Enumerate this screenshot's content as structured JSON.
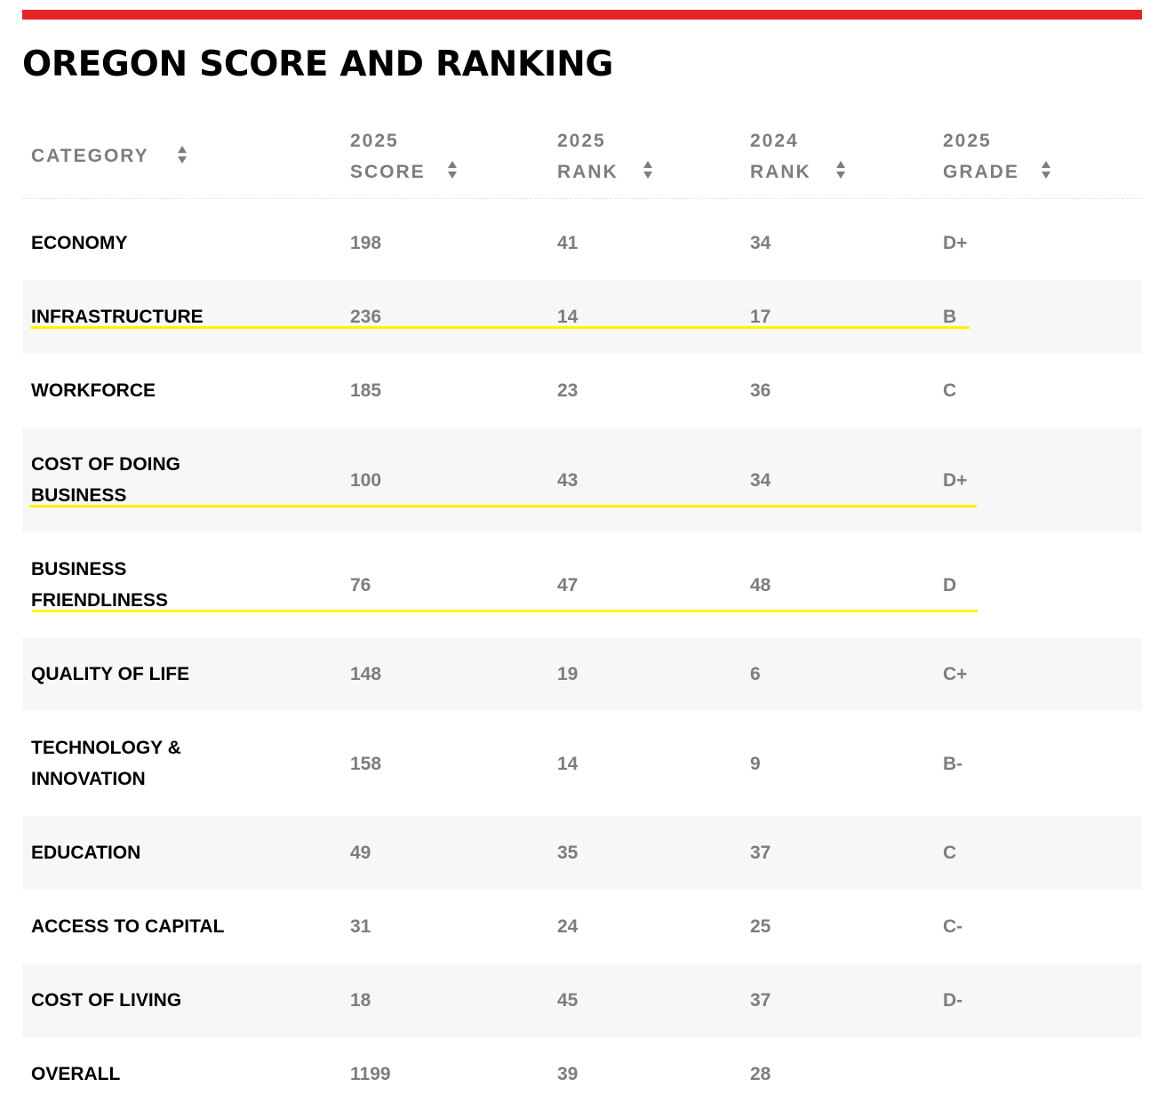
{
  "title": "OREGON SCORE AND RANKING",
  "colors": {
    "accent_bar": "#e3242b",
    "highlight": "#fff200",
    "header_text": "#7d7d7d",
    "row_alt": "#f7f7f7"
  },
  "columns": [
    {
      "label": "CATEGORY",
      "icon": "sort-icon"
    },
    {
      "label": "2025 SCORE",
      "icon": "sort-icon"
    },
    {
      "label": "2025 RANK",
      "icon": "sort-icon"
    },
    {
      "label": "2024 RANK",
      "icon": "sort-icon"
    },
    {
      "label": "2025 GRADE",
      "icon": "sort-icon"
    }
  ],
  "rows": [
    {
      "category": "ECONOMY",
      "score_2025": "198",
      "rank_2025": "41",
      "rank_2024": "34",
      "grade_2025": "D+"
    },
    {
      "category": "INFRASTRUCTURE",
      "score_2025": "236",
      "rank_2025": "14",
      "rank_2024": "17",
      "grade_2025": "B",
      "highlighted": true
    },
    {
      "category": "WORKFORCE",
      "score_2025": "185",
      "rank_2025": "23",
      "rank_2024": "36",
      "grade_2025": "C"
    },
    {
      "category": "COST OF DOING BUSINESS",
      "score_2025": "100",
      "rank_2025": "43",
      "rank_2024": "34",
      "grade_2025": "D+",
      "highlighted": true
    },
    {
      "category": "BUSINESS FRIENDLINESS",
      "score_2025": "76",
      "rank_2025": "47",
      "rank_2024": "48",
      "grade_2025": "D",
      "highlighted": true
    },
    {
      "category": "QUALITY OF LIFE",
      "score_2025": "148",
      "rank_2025": "19",
      "rank_2024": "6",
      "grade_2025": "C+"
    },
    {
      "category": "TECHNOLOGY & INNOVATION",
      "score_2025": "158",
      "rank_2025": "14",
      "rank_2024": "9",
      "grade_2025": "B-"
    },
    {
      "category": "EDUCATION",
      "score_2025": "49",
      "rank_2025": "35",
      "rank_2024": "37",
      "grade_2025": "C"
    },
    {
      "category": "ACCESS TO CAPITAL",
      "score_2025": "31",
      "rank_2025": "24",
      "rank_2024": "25",
      "grade_2025": "C-"
    },
    {
      "category": "COST OF LIVING",
      "score_2025": "18",
      "rank_2025": "45",
      "rank_2024": "37",
      "grade_2025": "D-"
    },
    {
      "category": "OVERALL",
      "score_2025": "1199",
      "rank_2025": "39",
      "rank_2024": "28",
      "grade_2025": ""
    }
  ]
}
